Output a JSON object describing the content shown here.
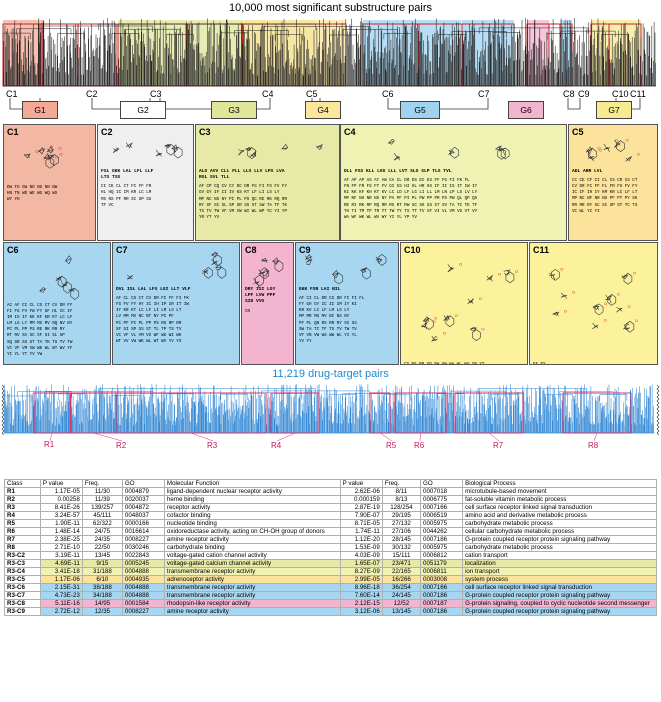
{
  "top": {
    "title": "10,000 most significant substructure pairs",
    "clusters": [
      "C1",
      "C2",
      "C3",
      "C4",
      "C5",
      "C6",
      "C7",
      "C8",
      "C9",
      "C10",
      "C11"
    ],
    "groups": [
      {
        "label": "G1",
        "color": "#f4a995"
      },
      {
        "label": "G2",
        "color": "#ffffff"
      },
      {
        "label": "G3",
        "color": "#dfe69a"
      },
      {
        "label": "G4",
        "color": "#fbe69c"
      },
      {
        "label": "G5",
        "color": "#9fd3f0"
      },
      {
        "label": "G6",
        "color": "#f3b4cf"
      },
      {
        "label": "G7",
        "color": "#f6ea92"
      }
    ]
  },
  "panels": [
    {
      "id": "C1",
      "color": "#f2b8a3",
      "text": "DW FS GW ND NG NN NW\nHN TN WD WE WG WQ WS\nWY YH"
    },
    {
      "id": "C2",
      "color": "#efefef",
      "bold": "FSL GKK LAL LFL LLF\nLTS TSS",
      "text": "CI CK CL CT FC FF FR\nHL HQ IC IM KR LC LM\nMS NS PF RR SC SP SS\nTF VC"
    },
    {
      "id": "C3",
      "color": "#e6eaa6",
      "bold": "ALG AVV CLL FLL LLS LLV LPS LVA\nRSL SVL TLL",
      "text": "AF CP CQ CV CY DC DR FG FI FS FV FY\nGV GY IF II IV KS KT LF LI LS LY\nMP NC NS NY PI PL PS QC RE RK RQ RR\nRY SF SI SL SP SR SS ST SW TA TF TK\nTS TV TW VF VM VW WI WL WP YC YI YP\nYR YT YV"
    },
    {
      "id": "C4",
      "color": "#eef2b3",
      "bold": "DLL FSS KLL LGG LLL LVT SLG SLP TLS TVL",
      "text": "AF AP AP AS AT AW CA CL DR DS EC ES FF FG FI FK FL\nFN FP FR FS FT FV GI GS HI HL HR HS IF II IS IT IW IY\nKI KK KF KH KT KV LC LD LF LG LI LL LM LN LP LS LV LY\nMP NF NH NR NS NY PA PF PI PL PW PP PR PS PW QL QP QS\nRE RI RK RP RQ RR RS RT RW SC SK SS ST SV TA TC TE TF\nTH TI TM TP TR TT TW TY TS TT TV VF VI VL VM VS VT VY\nWA WF WK WL WV WY YI YL YP YV"
    },
    {
      "id": "C5",
      "color": "#fbe39c",
      "bold": "ADL ARR LVL",
      "text": "CC CE CF CI CL CS CR CS CT\nCV DR FC FF FL FR FS FV FY\nIC IF IH IY KM KR LC LF LT\nMP NC NF NR NS PF PT PY SK\nRR RR RY SC SI SP ST TC TS\nVC WL YC YI"
    },
    {
      "id": "C6",
      "color": "#a7d6f1",
      "text": "AC AF CI CL CS CT CV DR FF\nFI FS FV FW FY GF HL IC IF\nIM IS IY KK KF KR KT LC LF\nLM LS LY MM MS MV NQ NV NY\nPC PL PP PS RE RK RR RY\nRT RV SA SC SF SI SL SP\nSQ SR SS ST TA TK TS TV TW\nVC VF VM VW WK WL WT WV YF\nYI YL YT YV YW"
    },
    {
      "id": "C7",
      "color": "#a7d6f1",
      "bold": "DVL ISL LAL LFS LGI LLT VLF",
      "text": "AF CL CS CT CV DR FC FF FI FK\nFS FV FY HY IC IH IP IR IT IW\nIY KR KT LC LF LI LM LS LT\nLV MM MV NC NT NY PC PF\nPC PF PI PL PP PS RS RP RR\nSF SI SP SS ST TL TP TS TV\nVC VF VL VM VS WF WG WI WK\nWT VV VW WK WL WT WV YV YS"
    },
    {
      "id": "C8",
      "color": "#f3b4cf",
      "bold": "DRY ISI LGY\nLPF LVW PPF\nSID VVG",
      "text": "CN"
    },
    {
      "id": "C9",
      "color": "#a7d6f1",
      "bold": "EKK FSR LAI NIL",
      "text": "AF CI CL DR CS DR FC FI FL\nFY GH GY IC II IM IY KI\nKR KV LC LF LM LS LY\nMP MR MS MV NI NS NY\nPF PL QN RS RR RY SC SS\nSW TA TC TF TS TV TW TV\nVF VN VW WS WW WL YI YL\nYV YY"
    },
    {
      "id": "C10",
      "color": "#fbf29b",
      "text": "CS NS PP SQ SW VW WA WL WV YN YT"
    },
    {
      "id": "C11",
      "color": "#fbf29b",
      "text": "FF FY"
    }
  ],
  "bottom": {
    "title": "11,219 drug-target pairs",
    "regions": [
      "R1",
      "R2",
      "R3",
      "R4",
      "R5",
      "R6",
      "R7",
      "R8"
    ]
  },
  "table": {
    "headers": [
      "Class",
      "P value",
      "Freq.",
      "GO",
      "Molecular Function",
      "P value",
      "Freq.",
      "GO",
      "Biological Process"
    ],
    "rows": [
      {
        "color": "#ffffff",
        "cells": [
          "R1",
          "1.17E-05",
          "11/30",
          "0004879",
          "ligand-dependent nuclear receptor activity",
          "2.62E-06",
          "8/11",
          "0007018",
          "microtubule-based movement"
        ]
      },
      {
        "color": "#ffffff",
        "cells": [
          "R2",
          "0.00258",
          "11/39",
          "0020037",
          "heme binding",
          "0.000159",
          "8/13",
          "0006775",
          "fat-soluble vitamin metabolic process"
        ]
      },
      {
        "color": "#ffffff",
        "cells": [
          "R3",
          "8.41E-26",
          "139/257",
          "0004872",
          "receptor activity",
          "2.87E-19",
          "128/254",
          "0007166",
          "cell surface receptor linked signal transduction"
        ]
      },
      {
        "color": "#ffffff",
        "cells": [
          "R4",
          "3.24E-57",
          "45/111",
          "0048037",
          "cofactor binding",
          "7.90E-07",
          "29/195",
          "0006519",
          "amino acid and derivative metabolic process"
        ]
      },
      {
        "color": "#ffffff",
        "cells": [
          "R5",
          "1.90E-11",
          "62/322",
          "0000166",
          "nucleotide binding",
          "8.71E-05",
          "27/132",
          "0005975",
          "carbohydrate metabolic process"
        ]
      },
      {
        "color": "#ffffff",
        "cells": [
          "R6",
          "1.48E-14",
          "24/75",
          "0016614",
          "oxidoreductase activity, acting on CH-OH group of donors",
          "1.74E-11",
          "27/106",
          "0044262",
          "cellular carbohydrate metabolic process"
        ]
      },
      {
        "color": "#ffffff",
        "cells": [
          "R7",
          "2.38E-25",
          "24/35",
          "0008227",
          "amine receptor activity",
          "1.12E-20",
          "28/145",
          "0007186",
          "G-protein coupled receptor protein signaling pathway"
        ]
      },
      {
        "color": "#ffffff",
        "cells": [
          "R8",
          "2.71E-10",
          "22/50",
          "0030246",
          "carbohydrate binding",
          "1.53E-09",
          "30/132",
          "0005975",
          "carbohydrate metabolic process"
        ]
      },
      {
        "color": "#ffffff",
        "cells": [
          "R3-C2",
          "3.19E-11",
          "13/45",
          "0022843",
          "voltage-gated cation channel activity",
          "4.03E-09",
          "15/111",
          "0006812",
          "cation transport"
        ]
      },
      {
        "color": "#e6eaa6",
        "cells": [
          "R3-C3",
          "4.69E-11",
          "9/15",
          "0005245",
          "voltage-gated calcium channel activity",
          "1.65E-07",
          "23/471",
          "0051179",
          "localization"
        ]
      },
      {
        "color": "#eef2b3",
        "cells": [
          "R3-C4",
          "3.41E-18",
          "31/188",
          "0004888",
          "transmembrane receptor activity",
          "8.27E-09",
          "22/165",
          "0006811",
          "ion transport"
        ]
      },
      {
        "color": "#fbe39c",
        "cells": [
          "R3-C5",
          "1.17E-06",
          "6/10",
          "0004935",
          "adrenoceptor activity",
          "2.99E-05",
          "16/266",
          "0003008",
          "system process"
        ]
      },
      {
        "color": "#a7d6f1",
        "cells": [
          "R3-C6",
          "2.15E-31",
          "38/188",
          "0004888",
          "transmembrane receptor activity",
          "8.96E-18",
          "36/254",
          "0007166",
          "cell surface receptor linked signal transduction"
        ]
      },
      {
        "color": "#a7d6f1",
        "cells": [
          "R3-C7",
          "4.73E-23",
          "34/188",
          "0004888",
          "transmembrane receptor activity",
          "7.60E-14",
          "24/145",
          "0007186",
          "G-protein coupled receptor protein signaling pathway"
        ]
      },
      {
        "color": "#f3b4cf",
        "cells": [
          "R3-C8",
          "5.11E-16",
          "14/95",
          "0001584",
          "rhodopsin-like receptor activity",
          "2.12E-15",
          "12/52",
          "0007187",
          "G-protein signaling, coupled to cyclic nucleotide second messenger"
        ]
      },
      {
        "color": "#a7d6f1",
        "cells": [
          "R3-C9",
          "2.72E-12",
          "12/35",
          "0008227",
          "amine receptor activity",
          "3.12E-06",
          "13/145",
          "0007186",
          "G-protein coupled receptor protein signaling pathway"
        ]
      }
    ]
  }
}
